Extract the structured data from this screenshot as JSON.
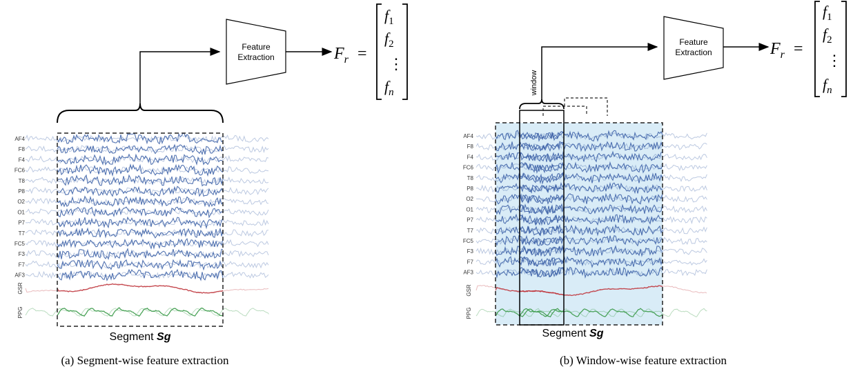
{
  "channels": [
    "AF4",
    "F8",
    "F4",
    "FC6",
    "T8",
    "P8",
    "O2",
    "O1",
    "P7",
    "T7",
    "FC5",
    "F3",
    "F7",
    "AF3"
  ],
  "physio": [
    "GSR",
    "PPG"
  ],
  "colors": {
    "eeg": "#3f64a8",
    "gsr": "#c0393f",
    "ppg": "#3a9a48",
    "window_bg": "#d9ecf7"
  },
  "panel_a": {
    "feature_box": [
      "Feature",
      "Extraction"
    ],
    "segment_prefix": "Segment ",
    "segment_name": "Sg",
    "caption": "(a) Segment-wise feature extraction",
    "output": {
      "lhs": "F",
      "sub": "r",
      "eq": "=",
      "entries": [
        "f",
        "f",
        "⋮",
        "f"
      ],
      "subs": [
        "1",
        "2",
        "",
        "n"
      ]
    }
  },
  "panel_b": {
    "feature_box": [
      "Feature",
      "Extraction"
    ],
    "window_label": "window",
    "segment_prefix": "Segment ",
    "segment_name": "Sg",
    "caption": "(b) Window-wise feature extraction",
    "output": {
      "lhs": "F",
      "sub": "r",
      "eq": "=",
      "entries": [
        "f",
        "f",
        "⋮",
        "f"
      ],
      "subs": [
        "1",
        "2",
        "",
        "n"
      ]
    }
  }
}
